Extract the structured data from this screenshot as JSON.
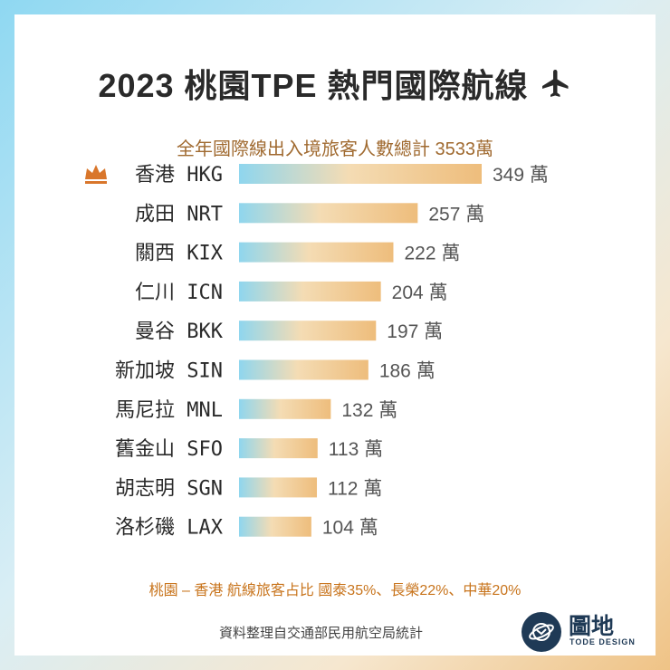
{
  "title": "2023 桃園TPE 熱門國際航線",
  "subtitle": "全年國際線出入境旅客人數總計 3533萬",
  "chart_data": {
    "type": "bar",
    "orientation": "horizontal",
    "categories": [
      "香港 HKG",
      "成田 NRT",
      "關西 KIX",
      "仁川 ICN",
      "曼谷 BKK",
      "新加坡 SIN",
      "馬尼拉 MNL",
      "舊金山 SFO",
      "胡志明 SGN",
      "洛杉磯 LAX"
    ],
    "values": [
      349,
      257,
      222,
      204,
      197,
      186,
      132,
      113,
      112,
      104
    ],
    "value_labels": [
      "349 萬",
      "257 萬",
      "222 萬",
      "204 萬",
      "197 萬",
      "186 萬",
      "132 萬",
      "113 萬",
      "112 萬",
      "104 萬"
    ],
    "unit": "萬",
    "xlim": [
      0,
      349
    ],
    "top_marker": "crown-icon",
    "bar_gradient": [
      "#8fd6ee",
      "#f4dcb4",
      "#eebd7c"
    ]
  },
  "note": "桃園 – 香港 航線旅客占比 國泰35%、長榮22%、中華20%",
  "source": "資料整理自交通部民用航空局統計",
  "logo": {
    "name": "圖地",
    "sub": "TODE DESIGN"
  },
  "colors": {
    "accent": "#c8741c",
    "subtitle": "#a06a30",
    "brand": "#1f3a56"
  }
}
